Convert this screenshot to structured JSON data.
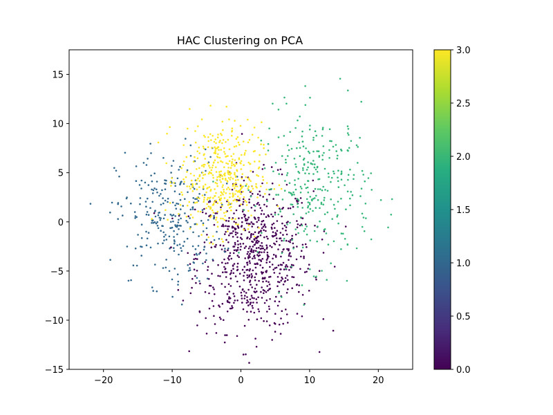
{
  "chart_data": {
    "type": "scatter",
    "title": "HAC Clustering on PCA",
    "xlabel": "",
    "ylabel": "",
    "xlim": [
      -25,
      25
    ],
    "ylim": [
      -15,
      17.5
    ],
    "xticks": [
      -20,
      -10,
      0,
      10,
      20
    ],
    "yticks": [
      -15,
      -10,
      -5,
      0,
      5,
      10,
      15
    ],
    "grid": false,
    "colorbar": {
      "range": [
        0.0,
        3.0
      ],
      "ticks": [
        "0.0",
        "0.5",
        "1.0",
        "1.5",
        "2.0",
        "2.5",
        "3.0"
      ],
      "colormap": "viridis"
    },
    "clusters": [
      {
        "label": 0,
        "color": "#440154",
        "center": [
          2,
          -3.5
        ],
        "spread": [
          4.2,
          3.8
        ],
        "count": 720
      },
      {
        "label": 1,
        "color": "#31688e",
        "center": [
          -10.5,
          0.5
        ],
        "spread": [
          3.8,
          3.4
        ],
        "count": 280
      },
      {
        "label": 2,
        "color": "#35b779",
        "center": [
          11,
          3.5
        ],
        "spread": [
          4.0,
          3.8
        ],
        "count": 300
      },
      {
        "label": 3,
        "color": "#fde725",
        "center": [
          -3,
          4.5
        ],
        "spread": [
          3.0,
          2.8
        ],
        "count": 430
      }
    ]
  }
}
